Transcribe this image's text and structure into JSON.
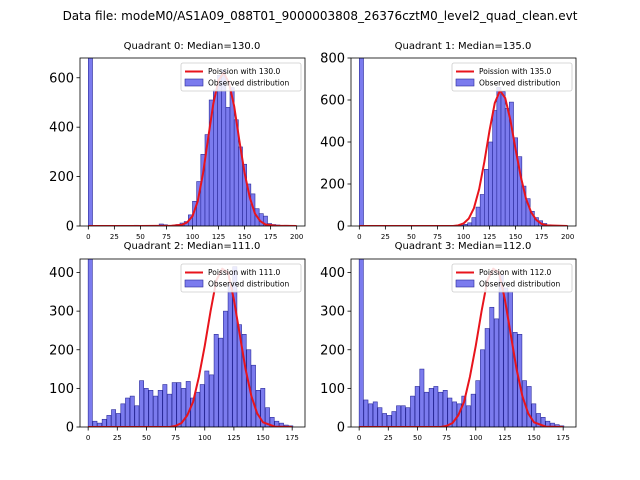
{
  "figure_title": "Data file: modeM0/AS1A09_088T01_9000003808_26376cztM0_level2_quad_clean.evt",
  "colors": {
    "bar_fill": "#7b7bee",
    "bar_edge": "#2a2a9a",
    "poisson_line": "#e8141c"
  },
  "chart_data": [
    {
      "type": "bar",
      "title": "Quadrant 0: Median=130.0",
      "xlim": [
        -8,
        208
      ],
      "ylim": [
        0,
        680
      ],
      "xticks": [
        0,
        25,
        50,
        75,
        100,
        125,
        150,
        175,
        200
      ],
      "yticks": [
        0,
        200,
        400,
        600
      ],
      "legend": {
        "line_label": "Poission with 130.0",
        "bar_label": "Observed distribution",
        "loc": "upper right"
      },
      "bin_width": 4,
      "bins": [
        [
          0,
          680
        ],
        [
          44,
          3
        ],
        [
          68,
          8
        ],
        [
          72,
          5
        ],
        [
          80,
          3
        ],
        [
          84,
          6
        ],
        [
          88,
          12
        ],
        [
          92,
          18
        ],
        [
          96,
          45
        ],
        [
          100,
          100
        ],
        [
          104,
          180
        ],
        [
          108,
          290
        ],
        [
          112,
          370
        ],
        [
          116,
          510
        ],
        [
          120,
          550
        ],
        [
          124,
          610
        ],
        [
          128,
          630
        ],
        [
          132,
          480
        ],
        [
          136,
          560
        ],
        [
          140,
          430
        ],
        [
          144,
          320
        ],
        [
          148,
          250
        ],
        [
          152,
          170
        ],
        [
          156,
          130
        ],
        [
          160,
          70
        ],
        [
          164,
          50
        ],
        [
          168,
          40
        ],
        [
          172,
          10
        ],
        [
          176,
          6
        ],
        [
          180,
          4
        ],
        [
          188,
          3
        ]
      ],
      "poisson_x": [
        0,
        50,
        80,
        90,
        95,
        100,
        105,
        110,
        115,
        120,
        125,
        130,
        135,
        140,
        145,
        150,
        155,
        160,
        165,
        170,
        180,
        200
      ],
      "poisson_y": [
        0,
        0,
        1,
        5,
        15,
        40,
        100,
        210,
        355,
        495,
        590,
        620,
        580,
        485,
        345,
        215,
        115,
        50,
        20,
        6,
        1,
        0
      ]
    },
    {
      "type": "bar",
      "title": "Quadrant 1: Median=135.0",
      "xlim": [
        -8,
        208
      ],
      "ylim": [
        0,
        800
      ],
      "xticks": [
        0,
        25,
        50,
        75,
        100,
        125,
        150,
        175,
        200
      ],
      "yticks": [
        0,
        200,
        400,
        600,
        800
      ],
      "legend": {
        "line_label": "Poission with 135.0",
        "bar_label": "Observed distribution",
        "loc": "upper right"
      },
      "bin_width": 4,
      "bins": [
        [
          0,
          800
        ],
        [
          96,
          4
        ],
        [
          100,
          8
        ],
        [
          104,
          15
        ],
        [
          108,
          40
        ],
        [
          112,
          90
        ],
        [
          116,
          150
        ],
        [
          120,
          270
        ],
        [
          124,
          400
        ],
        [
          128,
          550
        ],
        [
          132,
          660
        ],
        [
          136,
          640
        ],
        [
          140,
          560
        ],
        [
          144,
          590
        ],
        [
          148,
          420
        ],
        [
          152,
          330
        ],
        [
          156,
          190
        ],
        [
          160,
          130
        ],
        [
          164,
          70
        ],
        [
          168,
          40
        ],
        [
          172,
          25
        ],
        [
          176,
          12
        ],
        [
          180,
          6
        ],
        [
          184,
          3
        ]
      ],
      "poisson_x": [
        0,
        90,
        95,
        100,
        105,
        110,
        115,
        120,
        125,
        130,
        135,
        140,
        145,
        150,
        155,
        160,
        165,
        170,
        175,
        180,
        200
      ],
      "poisson_y": [
        0,
        0,
        3,
        12,
        35,
        85,
        175,
        305,
        455,
        585,
        645,
        610,
        505,
        365,
        235,
        130,
        65,
        28,
        10,
        3,
        0
      ]
    },
    {
      "type": "bar",
      "title": "Quadrant 2: Median=111.0",
      "xlim": [
        -7,
        186
      ],
      "ylim": [
        0,
        435
      ],
      "xticks": [
        0,
        25,
        50,
        75,
        100,
        125,
        150,
        175
      ],
      "yticks": [
        0,
        100,
        200,
        300,
        400
      ],
      "legend": {
        "line_label": "Poission with 111.0",
        "bar_label": "Observed distribution",
        "loc": "upper right"
      },
      "bin_width": 3.6,
      "bins": [
        [
          0,
          435
        ],
        [
          4,
          15
        ],
        [
          8,
          10
        ],
        [
          12,
          20
        ],
        [
          16,
          30
        ],
        [
          20,
          45
        ],
        [
          24,
          35
        ],
        [
          28,
          60
        ],
        [
          32,
          75
        ],
        [
          36,
          80
        ],
        [
          40,
          55
        ],
        [
          44,
          120
        ],
        [
          48,
          100
        ],
        [
          52,
          95
        ],
        [
          56,
          80
        ],
        [
          60,
          95
        ],
        [
          64,
          110
        ],
        [
          68,
          85
        ],
        [
          72,
          115
        ],
        [
          76,
          115
        ],
        [
          80,
          100
        ],
        [
          84,
          118
        ],
        [
          88,
          75
        ],
        [
          92,
          90
        ],
        [
          96,
          110
        ],
        [
          100,
          145
        ],
        [
          104,
          135
        ],
        [
          108,
          240
        ],
        [
          112,
          230
        ],
        [
          116,
          300
        ],
        [
          120,
          370
        ],
        [
          124,
          415
        ],
        [
          128,
          265
        ],
        [
          132,
          240
        ],
        [
          136,
          200
        ],
        [
          140,
          160
        ],
        [
          144,
          95
        ],
        [
          148,
          100
        ],
        [
          152,
          50
        ],
        [
          156,
          25
        ],
        [
          160,
          15
        ],
        [
          164,
          10
        ],
        [
          168,
          5
        ],
        [
          172,
          3
        ]
      ],
      "poisson_x": [
        0,
        70,
        75,
        80,
        85,
        90,
        95,
        100,
        105,
        110,
        115,
        120,
        125,
        130,
        135,
        140,
        145,
        150,
        160,
        175
      ],
      "poisson_y": [
        0,
        0,
        3,
        10,
        30,
        65,
        130,
        210,
        300,
        380,
        410,
        400,
        330,
        240,
        150,
        80,
        35,
        12,
        1,
        0
      ]
    },
    {
      "type": "bar",
      "title": "Quadrant 3: Median=112.0",
      "xlim": [
        -7,
        186
      ],
      "ylim": [
        0,
        435
      ],
      "xticks": [
        0,
        25,
        50,
        75,
        100,
        125,
        150,
        175
      ],
      "yticks": [
        0,
        100,
        200,
        300,
        400
      ],
      "legend": {
        "line_label": "Poission with 112.0",
        "bar_label": "Observed distribution",
        "loc": "upper right"
      },
      "bin_width": 3.6,
      "bins": [
        [
          0,
          435
        ],
        [
          4,
          70
        ],
        [
          8,
          60
        ],
        [
          12,
          65
        ],
        [
          16,
          50
        ],
        [
          20,
          35
        ],
        [
          24,
          30
        ],
        [
          28,
          40
        ],
        [
          32,
          55
        ],
        [
          36,
          55
        ],
        [
          40,
          50
        ],
        [
          44,
          80
        ],
        [
          48,
          105
        ],
        [
          52,
          150
        ],
        [
          56,
          90
        ],
        [
          60,
          100
        ],
        [
          64,
          105
        ],
        [
          68,
          90
        ],
        [
          72,
          95
        ],
        [
          76,
          75
        ],
        [
          80,
          65
        ],
        [
          84,
          60
        ],
        [
          88,
          80
        ],
        [
          92,
          55
        ],
        [
          96,
          85
        ],
        [
          100,
          120
        ],
        [
          104,
          200
        ],
        [
          108,
          255
        ],
        [
          112,
          310
        ],
        [
          116,
          280
        ],
        [
          120,
          395
        ],
        [
          124,
          360
        ],
        [
          128,
          350
        ],
        [
          132,
          245
        ],
        [
          136,
          240
        ],
        [
          140,
          120
        ],
        [
          144,
          105
        ],
        [
          148,
          60
        ],
        [
          152,
          35
        ],
        [
          156,
          25
        ],
        [
          160,
          15
        ],
        [
          164,
          10
        ],
        [
          168,
          6
        ],
        [
          172,
          3
        ]
      ],
      "poisson_x": [
        0,
        70,
        75,
        80,
        85,
        90,
        95,
        100,
        105,
        110,
        115,
        120,
        125,
        130,
        135,
        140,
        145,
        150,
        160,
        175
      ],
      "poisson_y": [
        0,
        0,
        3,
        10,
        30,
        65,
        130,
        210,
        300,
        380,
        410,
        400,
        330,
        240,
        150,
        80,
        35,
        12,
        1,
        0
      ]
    }
  ]
}
